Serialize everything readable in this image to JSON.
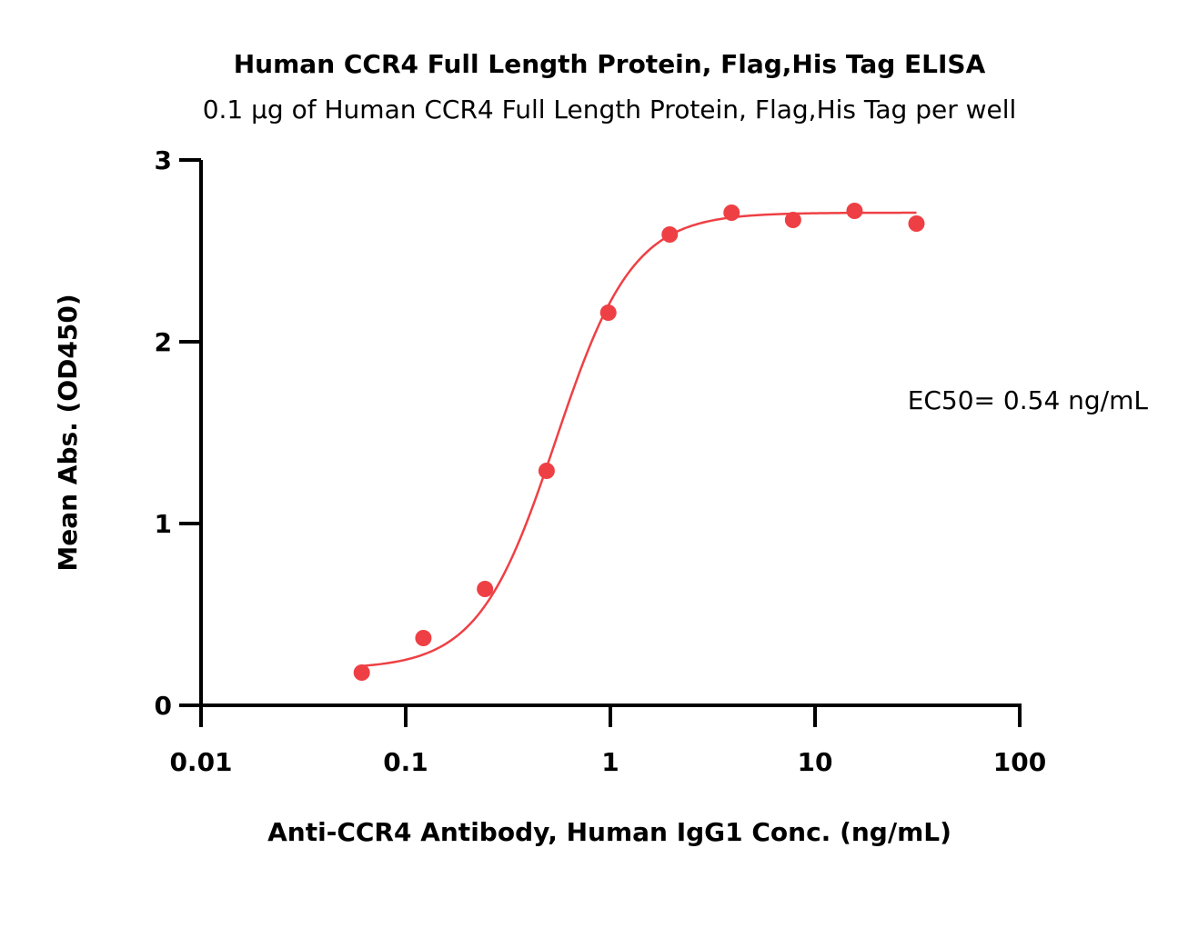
{
  "chart_data": {
    "type": "scatter",
    "title": "Human CCR4 Full Length Protein, Flag,His Tag ELISA",
    "subtitle": "0.1 μg of Human CCR4 Full Length Protein, Flag,His Tag per well",
    "xlabel": "Anti-CCR4 Antibody, Human IgG1 Conc. (ng/mL)",
    "ylabel": "Mean Abs. (OD450)",
    "x_scale": "log",
    "xlim": [
      0.01,
      100
    ],
    "ylim": [
      0,
      3
    ],
    "x_ticks": [
      "0.01",
      "0.1",
      "1",
      "10",
      "100"
    ],
    "x_tick_values": [
      0.01,
      0.1,
      1,
      10,
      100
    ],
    "y_ticks": [
      "0",
      "1",
      "2",
      "3"
    ],
    "y_tick_values": [
      0,
      1,
      2,
      3
    ],
    "grid": false,
    "color": "#ee4044",
    "series": [
      {
        "x": [
          0.061,
          0.122,
          0.244,
          0.488,
          0.977,
          1.95,
          3.91,
          7.81,
          15.6,
          31.3
        ],
        "y": [
          0.18,
          0.37,
          0.64,
          1.29,
          2.16,
          2.59,
          2.71,
          2.67,
          2.72,
          2.65
        ]
      }
    ],
    "fit": {
      "bottom": 0.2,
      "top": 2.71,
      "ec50": 0.54,
      "hill": 2.3
    },
    "annotation": "EC50= 0.54 ng/mL"
  }
}
